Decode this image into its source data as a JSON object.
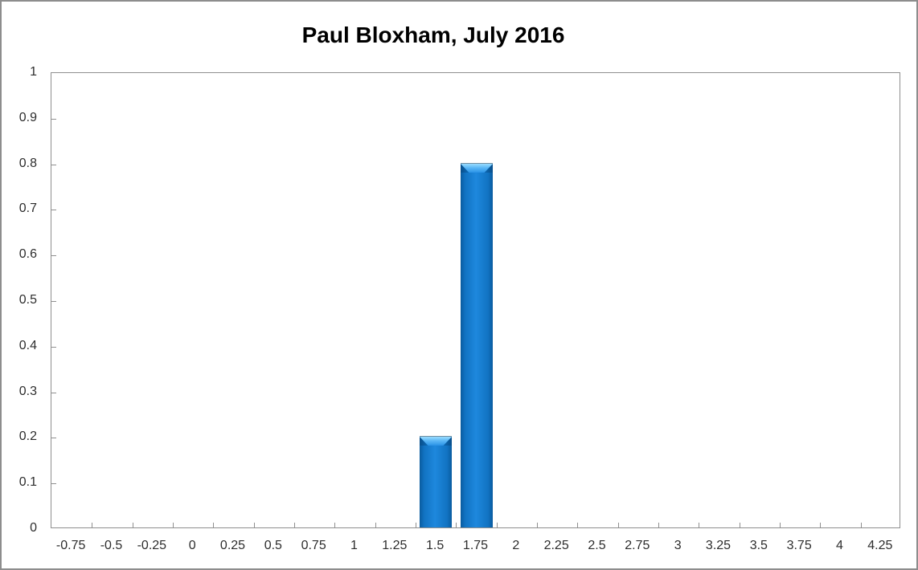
{
  "title": "Paul Bloxham, July 2016",
  "chart_data": {
    "type": "bar",
    "title": "Paul Bloxham, July 2016",
    "categories": [
      "-0.75",
      "-0.5",
      "-0.25",
      "0",
      "0.25",
      "0.5",
      "0.75",
      "1",
      "1.25",
      "1.5",
      "1.75",
      "2",
      "2.25",
      "2.5",
      "2.75",
      "3",
      "3.25",
      "3.5",
      "3.75",
      "4",
      "4.25"
    ],
    "values": [
      0,
      0,
      0,
      0,
      0,
      0,
      0,
      0,
      0,
      0.2,
      0.8,
      0,
      0,
      0,
      0,
      0,
      0,
      0,
      0,
      0,
      0
    ],
    "xlabel": "",
    "ylabel": "",
    "ylim": [
      0,
      1
    ],
    "ytick_step": 0.1,
    "grid": false,
    "legend": false,
    "colors": {
      "bar_fill": "#1377ca",
      "bar_edge_dark": "#0a5c9f",
      "bar_highlight": "#9adcff",
      "axis_line": "#8f8f8f",
      "outer_border": "#8d8d8d",
      "tick_label": "#2d2d2d",
      "title_text": "#000000"
    }
  }
}
